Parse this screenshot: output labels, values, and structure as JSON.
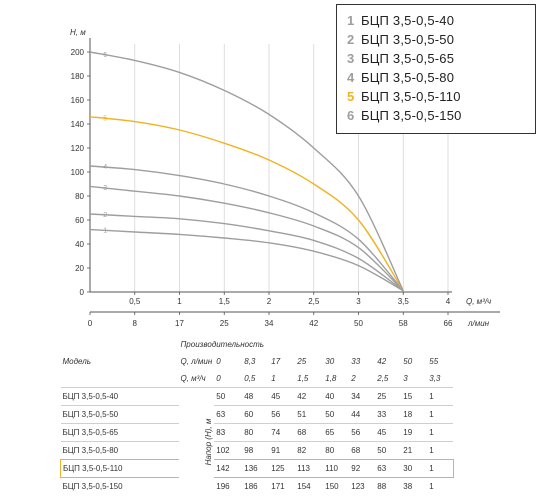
{
  "chart_data": {
    "type": "line",
    "y_axis": {
      "title": "H, м",
      "min": 0,
      "max": 200,
      "ticks": [
        0,
        20,
        40,
        60,
        80,
        100,
        120,
        140,
        160,
        180,
        200
      ]
    },
    "x_axis_m3h": {
      "title": "Q, м³/ч",
      "min": 0,
      "max": 4,
      "ticks": [
        "0,5",
        "1",
        "1,5",
        "2",
        "2,5",
        "3",
        "3,5",
        "4"
      ],
      "tick_values": [
        0.5,
        1,
        1.5,
        2,
        2.5,
        3,
        3.5,
        4
      ]
    },
    "x_axis_lmin": {
      "title": "л/мин",
      "ticks": [
        "0",
        "8",
        "17",
        "25",
        "34",
        "42",
        "50",
        "58",
        "66"
      ],
      "tick_values": [
        0,
        0.5,
        1,
        1.5,
        2,
        2.5,
        3,
        3.5,
        4
      ]
    },
    "grid": "vertical",
    "legend_position": "top-right",
    "series": [
      {
        "name": "БЦП 3,5-0,5-40",
        "label": "1",
        "color": "#9e9e9e",
        "x": [
          0,
          0.5,
          1,
          1.5,
          2,
          2.5,
          3,
          3.5
        ],
        "y": [
          52,
          50,
          48,
          45,
          41,
          34,
          22,
          1
        ]
      },
      {
        "name": "БЦП 3,5-0,5-50",
        "label": "2",
        "color": "#9e9e9e",
        "x": [
          0,
          0.5,
          1,
          1.5,
          2,
          2.5,
          3,
          3.5
        ],
        "y": [
          65,
          63,
          61,
          57,
          51,
          43,
          28,
          1
        ]
      },
      {
        "name": "БЦП 3,5-0,5-65",
        "label": "3",
        "color": "#9e9e9e",
        "x": [
          0,
          0.5,
          1,
          1.5,
          2,
          2.5,
          3,
          3.5
        ],
        "y": [
          88,
          84,
          80,
          74,
          66,
          55,
          37,
          1
        ]
      },
      {
        "name": "БЦП 3,5-0,5-80",
        "label": "4",
        "color": "#9e9e9e",
        "x": [
          0,
          0.5,
          1,
          1.5,
          2,
          2.5,
          3,
          3.5
        ],
        "y": [
          105,
          102,
          97,
          90,
          80,
          66,
          44,
          1
        ]
      },
      {
        "name": "БЦП 3,5-0,5-110",
        "label": "5",
        "color": "#f0b323",
        "x": [
          0,
          0.5,
          1,
          1.5,
          2,
          2.5,
          3,
          3.5
        ],
        "y": [
          146,
          142,
          135,
          124,
          110,
          90,
          60,
          1
        ]
      },
      {
        "name": "БЦП 3,5-0,5-150",
        "label": "6",
        "color": "#9e9e9e",
        "x": [
          0,
          0.5,
          1,
          1.5,
          2,
          2.5,
          3,
          3.5
        ],
        "y": [
          200,
          193,
          183,
          168,
          148,
          120,
          80,
          1
        ]
      }
    ]
  },
  "legend": [
    {
      "num": "1",
      "name": "БЦП 3,5-0,5-40",
      "color": "#9e9e9e"
    },
    {
      "num": "2",
      "name": "БЦП 3,5-0,5-50",
      "color": "#9e9e9e"
    },
    {
      "num": "3",
      "name": "БЦП 3,5-0,5-65",
      "color": "#9e9e9e"
    },
    {
      "num": "4",
      "name": "БЦП 3,5-0,5-80",
      "color": "#9e9e9e"
    },
    {
      "num": "5",
      "name": "БЦП 3,5-0,5-110",
      "color": "#f0b323"
    },
    {
      "num": "6",
      "name": "БЦП 3,5-0,5-150",
      "color": "#9e9e9e"
    }
  ],
  "table": {
    "header_performance": "Производительность",
    "header_model": "Модель",
    "row_lmin_label": "Q, л/мин",
    "row_m3h_label": "Q, м³/ч",
    "lmin": [
      "0",
      "8,3",
      "17",
      "25",
      "30",
      "33",
      "42",
      "50",
      "55"
    ],
    "m3h": [
      "0",
      "0,5",
      "1",
      "1,5",
      "1,8",
      "2",
      "2,5",
      "3",
      "3,3"
    ],
    "head_label": "Напор (H), м",
    "highlight_color": "#f0b323",
    "rows": [
      {
        "model": "БЦП 3,5-0,5-40",
        "values": [
          "50",
          "48",
          "45",
          "42",
          "40",
          "34",
          "25",
          "15",
          "1"
        ]
      },
      {
        "model": "БЦП 3,5-0,5-50",
        "values": [
          "63",
          "60",
          "56",
          "51",
          "50",
          "44",
          "33",
          "18",
          "1"
        ]
      },
      {
        "model": "БЦП 3,5-0,5-65",
        "values": [
          "83",
          "80",
          "74",
          "68",
          "65",
          "56",
          "45",
          "19",
          "1"
        ]
      },
      {
        "model": "БЦП 3,5-0,5-80",
        "values": [
          "102",
          "98",
          "91",
          "82",
          "80",
          "68",
          "50",
          "21",
          "1"
        ]
      },
      {
        "model": "БЦП 3,5-0,5-110",
        "values": [
          "142",
          "136",
          "125",
          "113",
          "110",
          "92",
          "63",
          "30",
          "1"
        ],
        "highlight": true
      },
      {
        "model": "БЦП 3,5-0,5-150",
        "values": [
          "196",
          "186",
          "171",
          "154",
          "150",
          "123",
          "88",
          "38",
          "1"
        ]
      }
    ]
  }
}
